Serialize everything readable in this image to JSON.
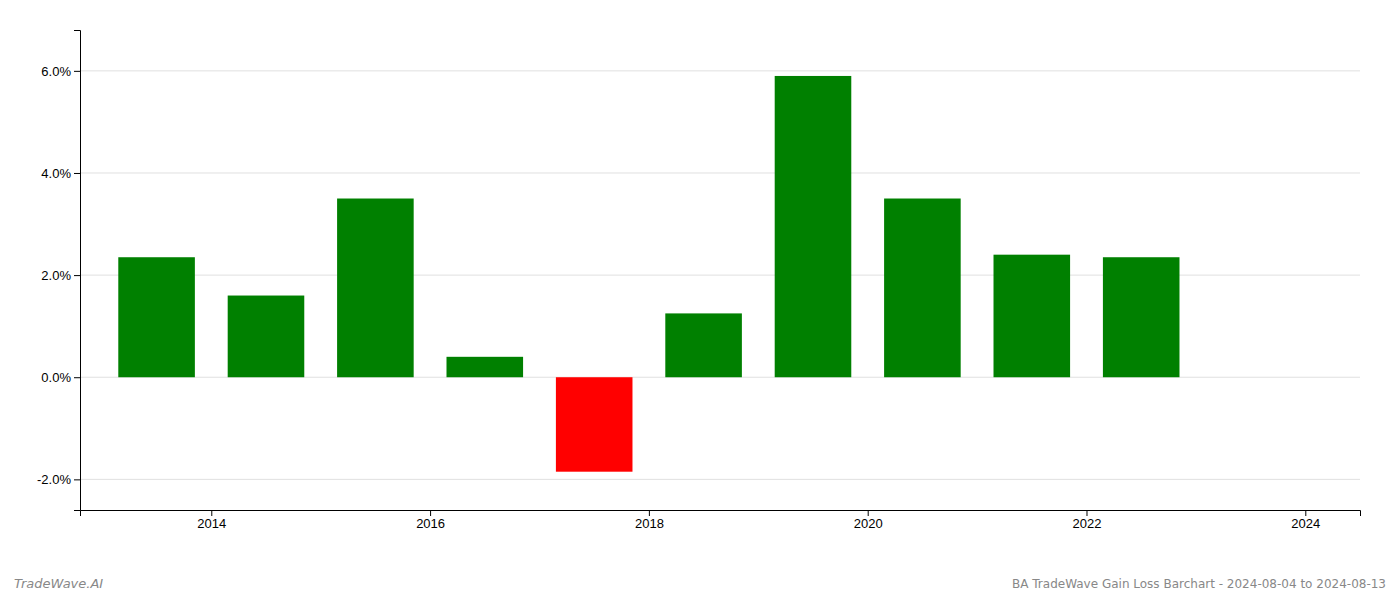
{
  "chart_data": {
    "type": "bar",
    "title": "BA TradeWave Gain Loss Barchart - 2024-08-04 to 2024-08-13",
    "annotations": [
      "TradeWave.AI"
    ],
    "x": [
      2013.5,
      2014.5,
      2015.5,
      2016.5,
      2017.5,
      2018.5,
      2019.5,
      2020.5,
      2021.5,
      2022.5
    ],
    "values": [
      0.0235,
      0.016,
      0.035,
      0.004,
      -0.0185,
      0.0125,
      0.059,
      0.035,
      0.024,
      0.0235
    ],
    "colors": [
      "#008000",
      "#008000",
      "#008000",
      "#008000",
      "#ff0000",
      "#008000",
      "#008000",
      "#008000",
      "#008000",
      "#008000"
    ],
    "xlim": [
      2012.8,
      2024.5
    ],
    "xticks": [
      2014,
      2016,
      2018,
      2020,
      2022,
      2024
    ],
    "ylim": [
      -0.026,
      0.068
    ],
    "yticks": [
      {
        "value": -0.02,
        "label": "-2.0%"
      },
      {
        "value": 0.0,
        "label": "0.0%"
      },
      {
        "value": 0.02,
        "label": "2.0%"
      },
      {
        "value": 0.04,
        "label": "4.0%"
      },
      {
        "value": 0.06,
        "label": "6.0%"
      }
    ],
    "grid": true
  }
}
